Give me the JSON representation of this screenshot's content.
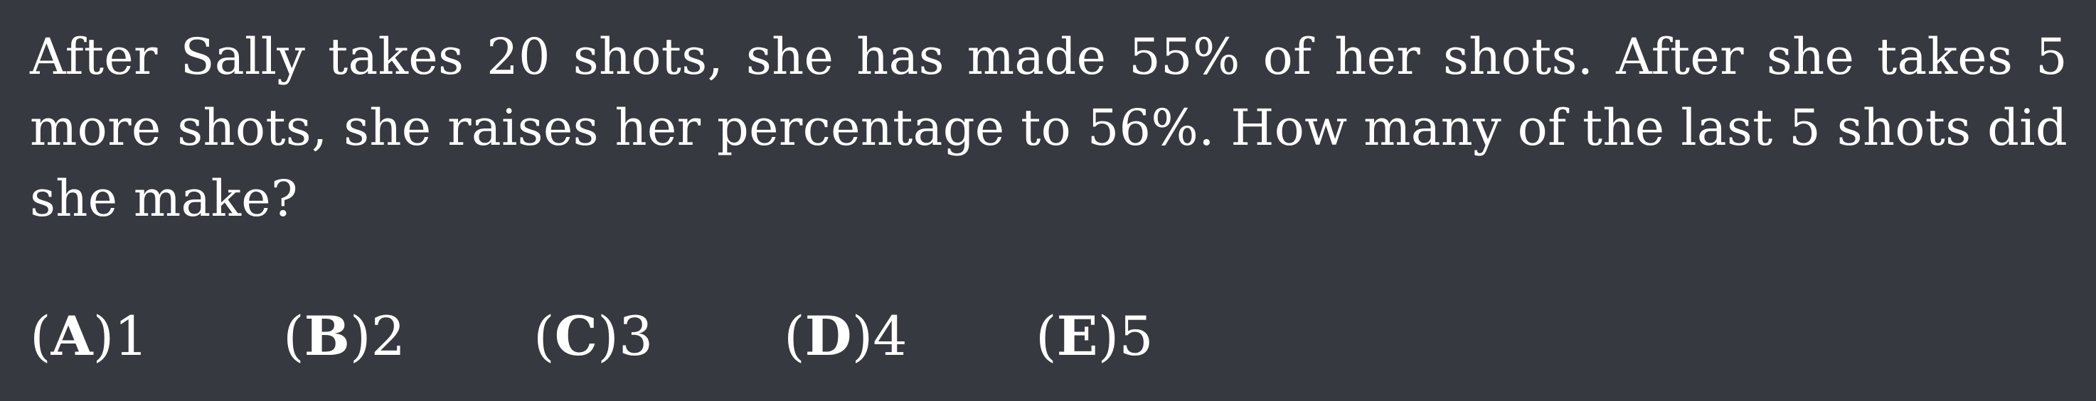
{
  "problem": {
    "text": "After Sally takes 20 shots, she has made 55% of her shots.  After she takes 5 more shots, she raises her percentage to 56%. How many of the last 5 shots did she make?"
  },
  "choices": [
    {
      "letter": "A",
      "value": "1"
    },
    {
      "letter": "B",
      "value": "2"
    },
    {
      "letter": "C",
      "value": "3"
    },
    {
      "letter": "D",
      "value": "4"
    },
    {
      "letter": "E",
      "value": "5"
    }
  ]
}
